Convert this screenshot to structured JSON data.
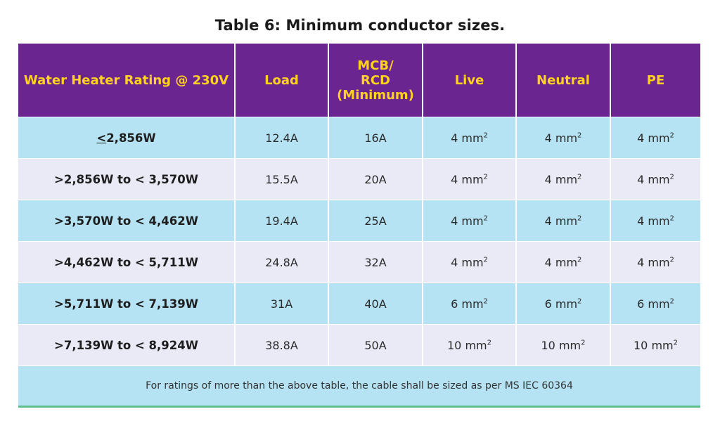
{
  "title": "Table 6: Minimum conductor sizes.",
  "headers": {
    "rating": "Water Heater Rating @ 230V",
    "load": "Load",
    "mcb_line1": "MCB/",
    "mcb_line2": "RCD",
    "mcb_line3": "(Minimum)",
    "live": "Live",
    "neutral": "Neutral",
    "pe": "PE"
  },
  "first_row_prefix": "<",
  "rows": [
    {
      "rating": "2,856W",
      "load": "12.4A",
      "mcb": "16A",
      "live": "4 mm",
      "neutral": "4 mm",
      "pe": "4 mm"
    },
    {
      "rating": ">2,856W to < 3,570W",
      "load": "15.5A",
      "mcb": "20A",
      "live": "4 mm",
      "neutral": "4 mm",
      "pe": "4 mm"
    },
    {
      "rating": ">3,570W to < 4,462W",
      "load": "19.4A",
      "mcb": "25A",
      "live": "4 mm",
      "neutral": "4 mm",
      "pe": "4 mm"
    },
    {
      "rating": ">4,462W to < 5,711W",
      "load": "24.8A",
      "mcb": "32A",
      "live": "4 mm",
      "neutral": "4 mm",
      "pe": "4 mm"
    },
    {
      "rating": ">5,711W to < 7,139W",
      "load": "31A",
      "mcb": "40A",
      "live": "6 mm",
      "neutral": "6 mm",
      "pe": "6 mm"
    },
    {
      "rating": ">7,139W to < 8,924W",
      "load": "38.8A",
      "mcb": "50A",
      "live": "10 mm",
      "neutral": "10 mm",
      "pe": "10 mm"
    }
  ],
  "unit_exponent": "2",
  "footnote": "For ratings of more than the above table, the cable shall be sized as per MS IEC 60364",
  "colors": {
    "header_bg": "#6b2590",
    "header_text": "#ffd21f",
    "row_blue": "#b5e3f3",
    "row_lavender": "#e9eaf6",
    "bottom_rule": "#5dbf8f"
  }
}
